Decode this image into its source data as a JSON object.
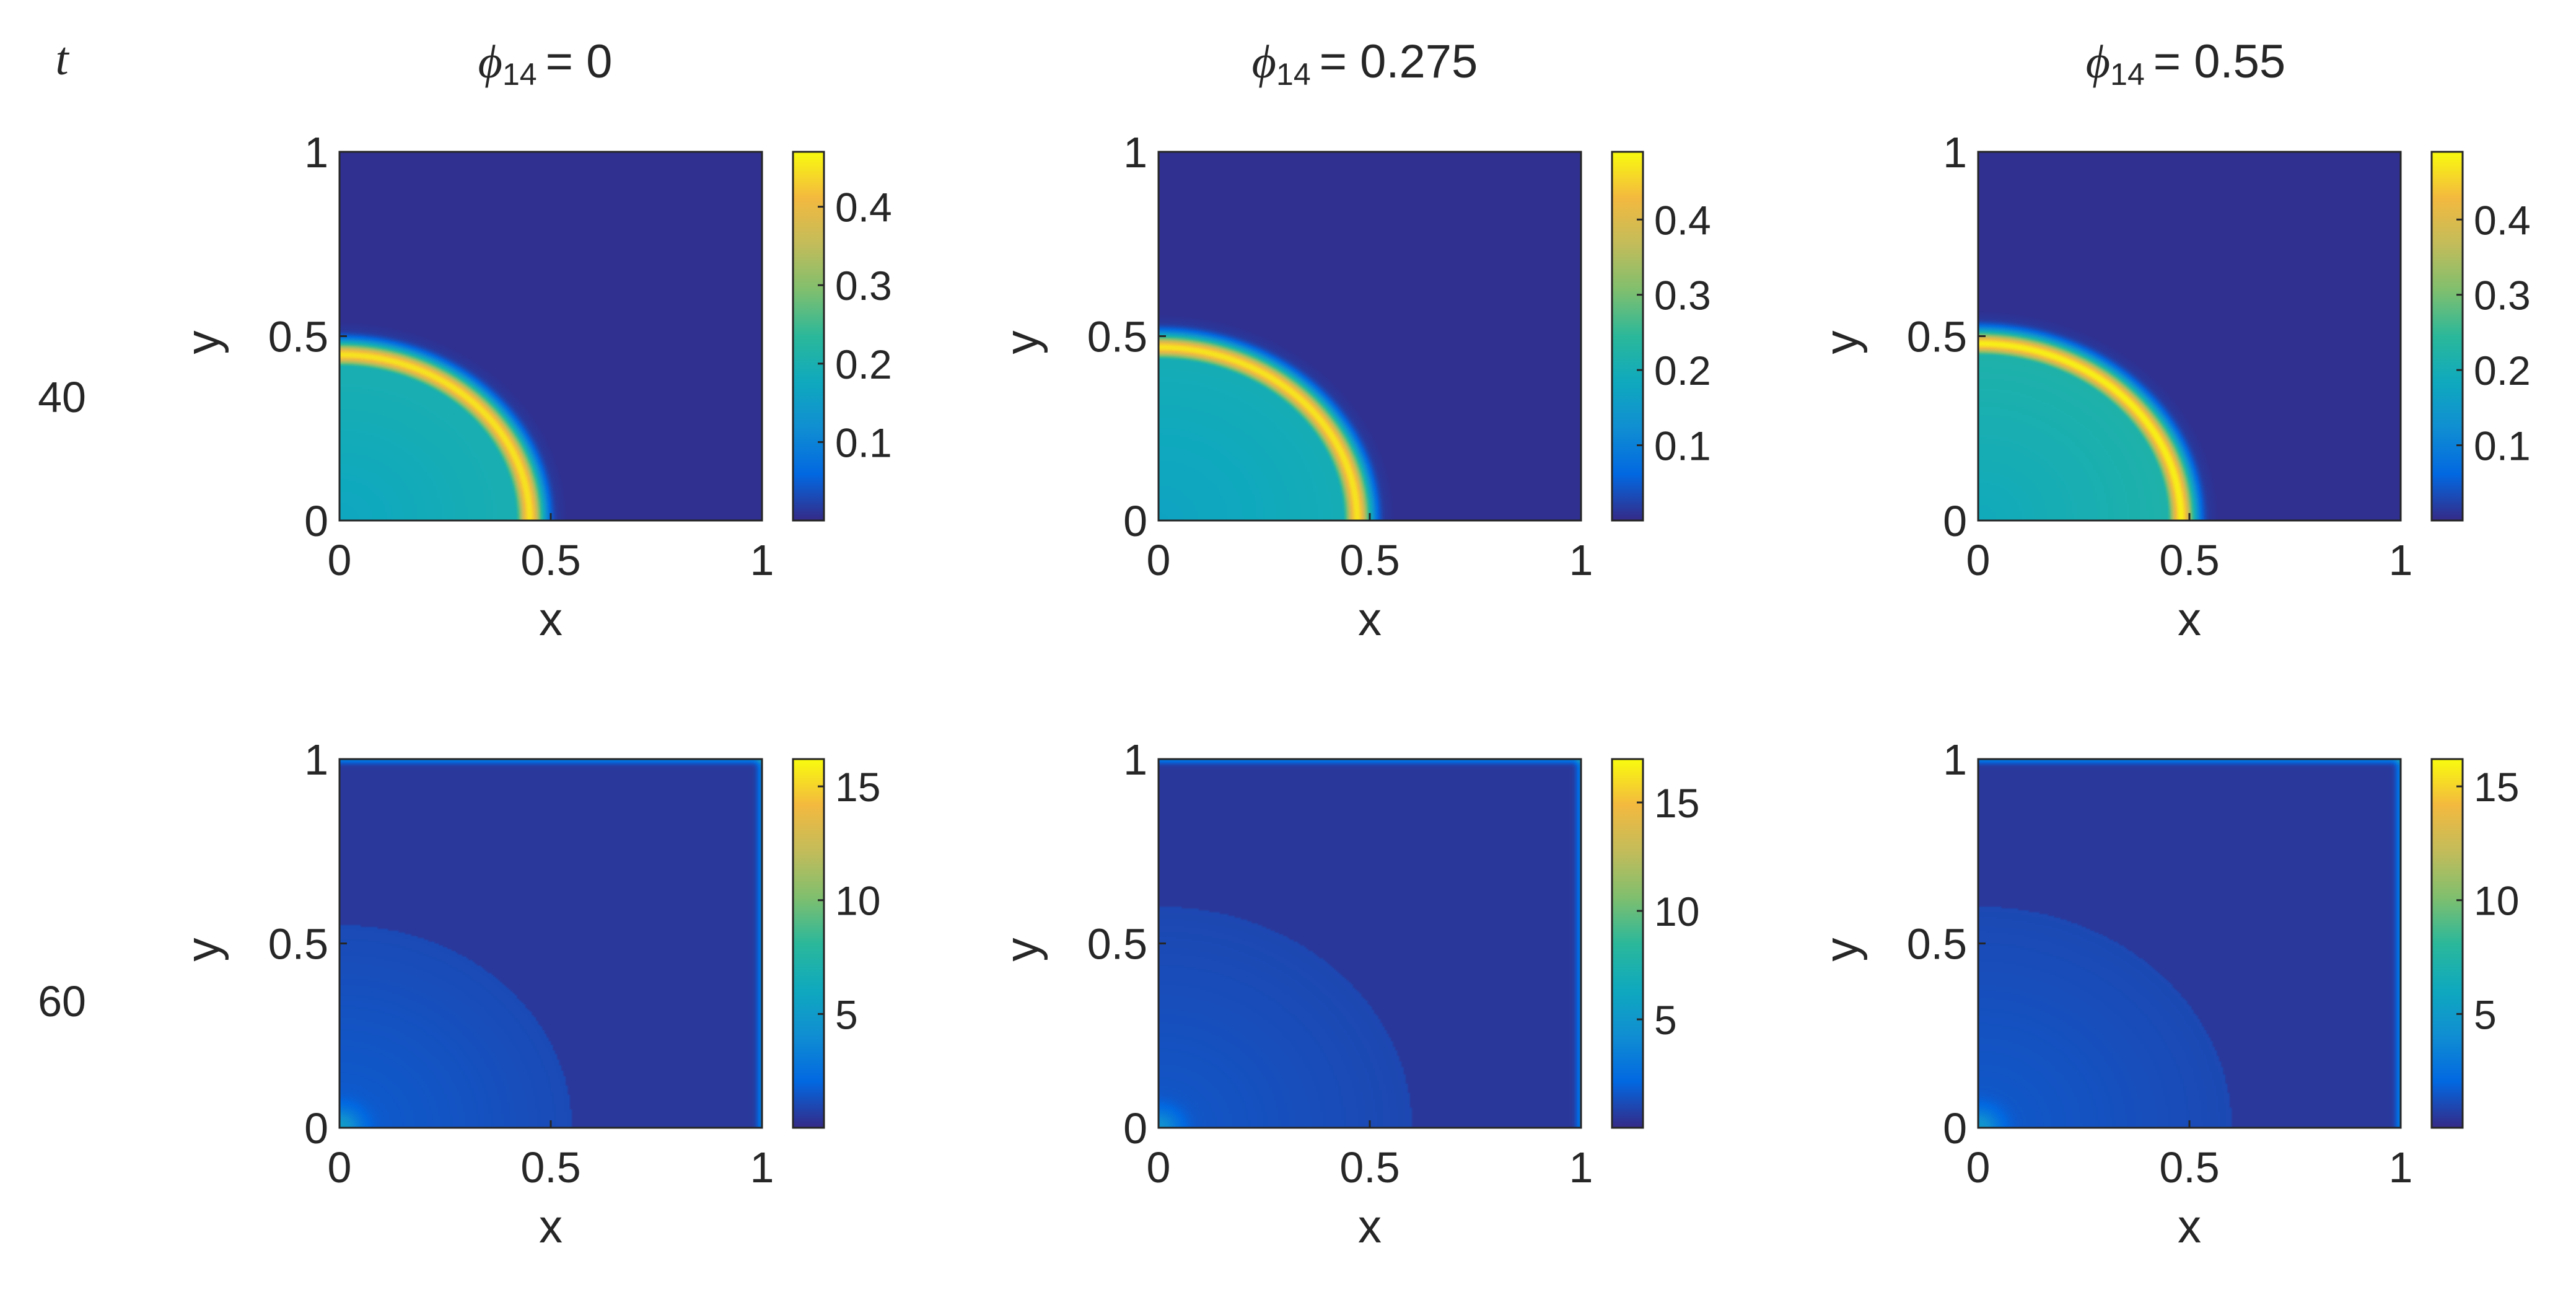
{
  "figure": {
    "row_header_label": "t",
    "column_headers": [
      {
        "symbol": "ϕ",
        "subscript": "14",
        "value_text": "= 0"
      },
      {
        "symbol": "ϕ",
        "subscript": "14",
        "value_text": "= 0.275"
      },
      {
        "symbol": "ϕ",
        "subscript": "14",
        "value_text": "= 0.55"
      }
    ],
    "row_labels": [
      "40",
      "60"
    ]
  },
  "colors": {
    "parula_stops": [
      "#352a87",
      "#0268e1",
      "#108ed2",
      "#0fa9be",
      "#2bb89a",
      "#80bf6e",
      "#c3bc5a",
      "#f3b93f",
      "#f9fb0e"
    ]
  },
  "chart_data": [
    {
      "type": "heatmap",
      "panel": "t=40, phi14=0",
      "xlabel": "x",
      "ylabel": "y",
      "xlim": [
        0,
        1
      ],
      "ylim": [
        0,
        1
      ],
      "xticks": [
        "0",
        "0.5",
        "1"
      ],
      "yticks": [
        "0",
        "0.5",
        "1"
      ],
      "field": {
        "kind": "ring",
        "ring_radius": 0.45,
        "ring_width": 0.035,
        "peak": 0.45,
        "interior": 0.2
      },
      "colorbar": {
        "min": 0,
        "max": 0.47,
        "ticks": [
          "0.1",
          "0.2",
          "0.3",
          "0.4"
        ],
        "tick_values": [
          0.1,
          0.2,
          0.3,
          0.4
        ]
      }
    },
    {
      "type": "heatmap",
      "panel": "t=40, phi14=0.275",
      "xlabel": "x",
      "ylabel": "y",
      "xlim": [
        0,
        1
      ],
      "ylim": [
        0,
        1
      ],
      "xticks": [
        "0",
        "0.5",
        "1"
      ],
      "yticks": [
        "0",
        "0.5",
        "1"
      ],
      "field": {
        "kind": "ring",
        "ring_radius": 0.47,
        "ring_width": 0.035,
        "peak": 0.47,
        "interior": 0.2
      },
      "colorbar": {
        "min": 0,
        "max": 0.49,
        "ticks": [
          "0.1",
          "0.2",
          "0.3",
          "0.4"
        ],
        "tick_values": [
          0.1,
          0.2,
          0.3,
          0.4
        ]
      }
    },
    {
      "type": "heatmap",
      "panel": "t=40, phi14=0.55",
      "xlabel": "x",
      "ylabel": "y",
      "xlim": [
        0,
        1
      ],
      "ylim": [
        0,
        1
      ],
      "xticks": [
        "0",
        "0.5",
        "1"
      ],
      "yticks": [
        "0",
        "0.5",
        "1"
      ],
      "field": {
        "kind": "ring",
        "ring_radius": 0.48,
        "ring_width": 0.035,
        "peak": 0.48,
        "interior": 0.22
      },
      "colorbar": {
        "min": 0,
        "max": 0.49,
        "ticks": [
          "0.1",
          "0.2",
          "0.3",
          "0.4"
        ],
        "tick_values": [
          0.1,
          0.2,
          0.3,
          0.4
        ]
      }
    },
    {
      "type": "heatmap",
      "panel": "t=60, phi14=0",
      "xlabel": "x",
      "ylabel": "y",
      "xlim": [
        0,
        1
      ],
      "ylim": [
        0,
        1
      ],
      "xticks": [
        "0",
        "0.5",
        "1"
      ],
      "yticks": [
        "0",
        "0.5",
        "1"
      ],
      "field": {
        "kind": "diffuse",
        "corner_peak": 3.5,
        "mid_level": 1.2,
        "mid_radius": 0.55,
        "edge_level": 2.5
      },
      "colorbar": {
        "min": 0,
        "max": 16.2,
        "ticks": [
          "5",
          "10",
          "15"
        ],
        "tick_values": [
          5,
          10,
          15
        ]
      }
    },
    {
      "type": "heatmap",
      "panel": "t=60, phi14=0.275",
      "xlabel": "x",
      "ylabel": "y",
      "xlim": [
        0,
        1
      ],
      "ylim": [
        0,
        1
      ],
      "xticks": [
        "0",
        "0.5",
        "1"
      ],
      "yticks": [
        "0",
        "0.5",
        "1"
      ],
      "field": {
        "kind": "diffuse",
        "corner_peak": 3.0,
        "mid_level": 1.1,
        "mid_radius": 0.6,
        "edge_level": 2.5
      },
      "colorbar": {
        "min": 0,
        "max": 17,
        "ticks": [
          "5",
          "10",
          "15"
        ],
        "tick_values": [
          5,
          10,
          15
        ]
      }
    },
    {
      "type": "heatmap",
      "panel": "t=60, phi14=0.55",
      "xlabel": "x",
      "ylabel": "y",
      "xlim": [
        0,
        1
      ],
      "ylim": [
        0,
        1
      ],
      "xticks": [
        "0",
        "0.5",
        "1"
      ],
      "yticks": [
        "0",
        "0.5",
        "1"
      ],
      "field": {
        "kind": "diffuse",
        "corner_peak": 3.2,
        "mid_level": 1.1,
        "mid_radius": 0.6,
        "edge_level": 2.5
      },
      "colorbar": {
        "min": 0,
        "max": 16.2,
        "ticks": [
          "5",
          "10",
          "15"
        ],
        "tick_values": [
          5,
          10,
          15
        ]
      }
    }
  ]
}
